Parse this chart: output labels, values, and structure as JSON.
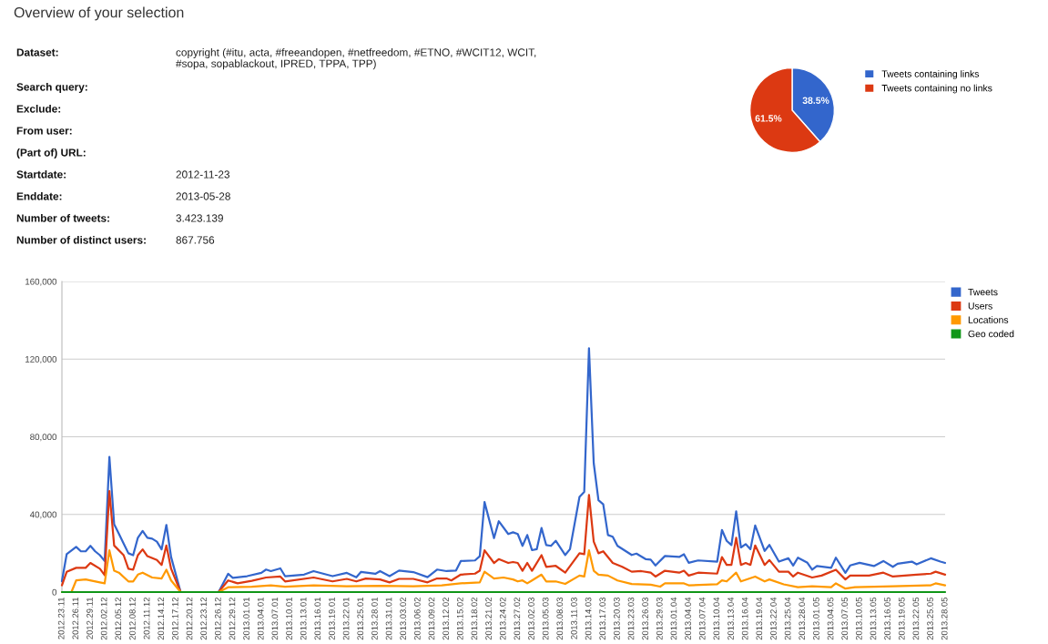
{
  "chart_data": [
    {
      "type": "other",
      "title": "Overview of your selection",
      "annotations": [
        "Dataset:",
        "Search query:",
        "Exclude:",
        "From user:",
        "(Part of) URL:",
        "Startdate:",
        "Enddate:",
        "Number of tweets:",
        "Number of distinct users:"
      ],
      "value_labels": [
        "copyright (#itu, acta, #freeandopen, #netfreedom, #ETNO, #WCIT12, WCIT,\n#sopa, sopablackout, IPRED, TPPA, TPP)",
        null,
        null,
        null,
        null,
        "2012-11-23",
        "2013-05-28",
        "3.423.139",
        "867.756"
      ]
    },
    {
      "type": "pie",
      "categories": [
        "Tweets containing links",
        "Tweets containing no links"
      ],
      "values": [
        38.5,
        61.5
      ],
      "colors": [
        "#3366cc",
        "#dc3912"
      ],
      "value_labels": [
        "38.5%",
        "61.5%"
      ],
      "legend": "right"
    },
    {
      "type": "line",
      "xlim": [
        "2012-11-23",
        "2013-05-28"
      ],
      "ylim": [
        0,
        160000
      ],
      "yticks": [
        0,
        {
          "value": 40000,
          "label": "40,000"
        },
        {
          "value": 80000,
          "label": "80,000"
        },
        {
          "value": 120000,
          "label": "120,000"
        },
        {
          "value": 160000,
          "label": "160,000"
        }
      ],
      "xticks": [
        {
          "value": "2012-11-23",
          "label": "2012.23.11"
        },
        {
          "value": "2012-11-26",
          "label": "2012.26.11"
        },
        {
          "value": "2012-11-29",
          "label": "2012.29.11"
        },
        {
          "value": "2012-12-02",
          "label": "2012.02.12"
        },
        {
          "value": "2012-12-05",
          "label": "2012.05.12"
        },
        {
          "value": "2012-12-08",
          "label": "2012.08.12"
        },
        {
          "value": "2012-12-11",
          "label": "2012.11.12"
        },
        {
          "value": "2012-12-14",
          "label": "2012.14.12"
        },
        {
          "value": "2012-12-17",
          "label": "2012.17.12"
        },
        {
          "value": "2012-12-20",
          "label": "2012.20.12"
        },
        {
          "value": "2012-12-23",
          "label": "2012.23.12"
        },
        {
          "value": "2012-12-26",
          "label": "2012.26.12"
        },
        {
          "value": "2012-12-29",
          "label": "2012.29.12"
        },
        {
          "value": "2013-01-01",
          "label": "2013.01.01"
        },
        {
          "value": "2013-01-04",
          "label": "2013.04.01"
        },
        {
          "value": "2013-01-07",
          "label": "2013.07.01"
        },
        {
          "value": "2013-01-10",
          "label": "2013.10.01"
        },
        {
          "value": "2013-01-13",
          "label": "2013.13.01"
        },
        {
          "value": "2013-01-16",
          "label": "2013.16.01"
        },
        {
          "value": "2013-01-19",
          "label": "2013.19.01"
        },
        {
          "value": "2013-01-22",
          "label": "2013.22.01"
        },
        {
          "value": "2013-01-25",
          "label": "2013.25.01"
        },
        {
          "value": "2013-01-28",
          "label": "2013.28.01"
        },
        {
          "value": "2013-01-31",
          "label": "2013.31.01"
        },
        {
          "value": "2013-02-03",
          "label": "2013.03.02"
        },
        {
          "value": "2013-02-06",
          "label": "2013.06.02"
        },
        {
          "value": "2013-02-09",
          "label": "2013.09.02"
        },
        {
          "value": "2013-02-12",
          "label": "2013.12.02"
        },
        {
          "value": "2013-02-15",
          "label": "2013.15.02"
        },
        {
          "value": "2013-02-18",
          "label": "2013.18.02"
        },
        {
          "value": "2013-02-21",
          "label": "2013.21.02"
        },
        {
          "value": "2013-02-24",
          "label": "2013.24.02"
        },
        {
          "value": "2013-02-27",
          "label": "2013.27.02"
        },
        {
          "value": "2013-03-02",
          "label": "2013.02.03"
        },
        {
          "value": "2013-03-05",
          "label": "2013.05.03"
        },
        {
          "value": "2013-03-08",
          "label": "2013.08.03"
        },
        {
          "value": "2013-03-11",
          "label": "2013.11.03"
        },
        {
          "value": "2013-03-14",
          "label": "2013.14.03"
        },
        {
          "value": "2013-03-17",
          "label": "2013.17.03"
        },
        {
          "value": "2013-03-20",
          "label": "2013.20.03"
        },
        {
          "value": "2013-03-23",
          "label": "2013.23.03"
        },
        {
          "value": "2013-03-26",
          "label": "2013.26.03"
        },
        {
          "value": "2013-03-29",
          "label": "2013.29.03"
        },
        {
          "value": "2013-04-01",
          "label": "2013.01.04"
        },
        {
          "value": "2013-04-04",
          "label": "2013.04.04"
        },
        {
          "value": "2013-04-07",
          "label": "2013.07.04"
        },
        {
          "value": "2013-04-10",
          "label": "2013.10.04"
        },
        {
          "value": "2013-04-13",
          "label": "2013.13.04"
        },
        {
          "value": "2013-04-16",
          "label": "2013.16.04"
        },
        {
          "value": "2013-04-19",
          "label": "2013.19.04"
        },
        {
          "value": "2013-04-22",
          "label": "2013.22.04"
        },
        {
          "value": "2013-04-25",
          "label": "2013.25.04"
        },
        {
          "value": "2013-04-28",
          "label": "2013.28.04"
        },
        {
          "value": "2013-05-01",
          "label": "2013.01.05"
        },
        {
          "value": "2013-05-04",
          "label": "2013.04.05"
        },
        {
          "value": "2013-05-07",
          "label": "2013.07.05"
        },
        {
          "value": "2013-05-10",
          "label": "2013.10.05"
        },
        {
          "value": "2013-05-13",
          "label": "2013.13.05"
        },
        {
          "value": "2013-05-16",
          "label": "2013.16.05"
        },
        {
          "value": "2013-05-19",
          "label": "2013.19.05"
        },
        {
          "value": "2013-05-22",
          "label": "2013.22.05"
        },
        {
          "value": "2013-05-25",
          "label": "2013.25.05"
        },
        {
          "value": "2013-05-28",
          "label": "2013.28.05"
        }
      ],
      "grid": "y",
      "legend": "top right",
      "series": [
        {
          "name": "Tweets",
          "color": "#3366cc",
          "x": [
            "2012-11-23",
            "2012-11-24",
            "2012-11-26",
            "2012-11-27",
            "2012-11-28",
            "2012-11-29",
            "2012-11-30",
            "2012-12-01",
            "2012-12-02",
            "2012-12-03",
            "2012-12-04",
            "2012-12-05",
            "2012-12-06",
            "2012-12-07",
            "2012-12-08",
            "2012-12-09",
            "2012-12-10",
            "2012-12-11",
            "2012-12-12",
            "2012-12-13",
            "2012-12-14",
            "2012-12-15",
            "2012-12-16",
            "2012-12-18",
            "2012-12-26",
            "2012-12-28",
            "2012-12-29",
            "2013-01-01",
            "2013-01-04",
            "2013-01-05",
            "2013-01-06",
            "2013-01-08",
            "2013-01-09",
            "2013-01-13",
            "2013-01-15",
            "2013-01-19",
            "2013-01-22",
            "2013-01-24",
            "2013-01-25",
            "2013-01-28",
            "2013-01-29",
            "2013-01-31",
            "2013-02-02",
            "2013-02-05",
            "2013-02-08",
            "2013-02-10",
            "2013-02-12",
            "2013-02-14",
            "2013-02-15",
            "2013-02-18",
            "2013-02-19",
            "2013-02-20",
            "2013-02-22",
            "2013-02-23",
            "2013-02-25",
            "2013-02-26",
            "2013-02-27",
            "2013-02-28",
            "2013-03-01",
            "2013-03-02",
            "2013-03-03",
            "2013-03-04",
            "2013-03-05",
            "2013-03-06",
            "2013-03-07",
            "2013-03-09",
            "2013-03-10",
            "2013-03-12",
            "2013-03-13",
            "2013-03-14",
            "2013-03-15",
            "2013-03-16",
            "2013-03-17",
            "2013-03-18",
            "2013-03-19",
            "2013-03-20",
            "2013-03-23",
            "2013-03-24",
            "2013-03-26",
            "2013-03-27",
            "2013-03-28",
            "2013-03-30",
            "2013-04-02",
            "2013-04-03",
            "2013-04-04",
            "2013-04-06",
            "2013-04-10",
            "2013-04-11",
            "2013-04-12",
            "2013-04-13",
            "2013-04-14",
            "2013-04-15",
            "2013-04-16",
            "2013-04-17",
            "2013-04-18",
            "2013-04-20",
            "2013-04-21",
            "2013-04-23",
            "2013-04-25",
            "2013-04-26",
            "2013-04-27",
            "2013-04-29",
            "2013-04-30",
            "2013-05-01",
            "2013-05-04",
            "2013-05-05",
            "2013-05-07",
            "2013-05-08",
            "2013-05-10",
            "2013-05-13",
            "2013-05-15",
            "2013-05-17",
            "2013-05-18",
            "2013-05-21",
            "2013-05-22",
            "2013-05-25",
            "2013-05-27",
            "2013-05-28"
          ],
          "values": [
            5600,
            19500,
            23300,
            21000,
            21000,
            23800,
            21000,
            19000,
            16000,
            69600,
            35000,
            30000,
            25000,
            20000,
            19000,
            28000,
            31500,
            28000,
            27500,
            26000,
            22000,
            34600,
            18000,
            0,
            0,
            9400,
            7300,
            8200,
            9900,
            11600,
            10800,
            12200,
            8200,
            9000,
            10800,
            8200,
            9900,
            7600,
            10400,
            9400,
            10800,
            8200,
            11100,
            10300,
            7700,
            11600,
            10800,
            11100,
            16000,
            16300,
            18500,
            46400,
            27800,
            36500,
            29900,
            30800,
            29900,
            23800,
            29400,
            21600,
            22100,
            33000,
            24200,
            23800,
            26400,
            19100,
            22100,
            49000,
            51600,
            125600,
            66400,
            47300,
            45200,
            29400,
            28500,
            23800,
            19100,
            19800,
            16900,
            16700,
            13700,
            18600,
            18100,
            19500,
            15100,
            16300,
            15700,
            32000,
            26400,
            24200,
            41600,
            23000,
            24700,
            22100,
            34300,
            21200,
            24300,
            15700,
            17400,
            13700,
            17700,
            15100,
            11600,
            13400,
            12500,
            17700,
            9900,
            13700,
            15100,
            13400,
            16000,
            13000,
            14600,
            15700,
            14300,
            17400,
            15700,
            15000
          ]
        },
        {
          "name": "Users",
          "color": "#dc3912",
          "x": [
            "2012-11-23",
            "2012-11-24",
            "2012-11-26",
            "2012-11-28",
            "2012-11-29",
            "2012-12-01",
            "2012-12-02",
            "2012-12-03",
            "2012-12-04",
            "2012-12-06",
            "2012-12-07",
            "2012-12-08",
            "2012-12-09",
            "2012-12-10",
            "2012-12-11",
            "2012-12-13",
            "2012-12-14",
            "2012-12-15",
            "2012-12-16",
            "2012-12-18",
            "2012-12-26",
            "2012-12-28",
            "2012-12-30",
            "2013-01-02",
            "2013-01-05",
            "2013-01-08",
            "2013-01-09",
            "2013-01-15",
            "2013-01-19",
            "2013-01-22",
            "2013-01-24",
            "2013-01-26",
            "2013-01-29",
            "2013-01-31",
            "2013-02-02",
            "2013-02-05",
            "2013-02-08",
            "2013-02-10",
            "2013-02-12",
            "2013-02-13",
            "2013-02-15",
            "2013-02-18",
            "2013-02-19",
            "2013-02-20",
            "2013-02-22",
            "2013-02-23",
            "2013-02-25",
            "2013-02-26",
            "2013-02-27",
            "2013-02-28",
            "2013-03-01",
            "2013-03-02",
            "2013-03-04",
            "2013-03-05",
            "2013-03-07",
            "2013-03-09",
            "2013-03-12",
            "2013-03-13",
            "2013-03-14",
            "2013-03-15",
            "2013-03-16",
            "2013-03-17",
            "2013-03-19",
            "2013-03-21",
            "2013-03-23",
            "2013-03-25",
            "2013-03-27",
            "2013-03-28",
            "2013-03-30",
            "2013-04-02",
            "2013-04-03",
            "2013-04-04",
            "2013-04-06",
            "2013-04-10",
            "2013-04-11",
            "2013-04-12",
            "2013-04-13",
            "2013-04-14",
            "2013-04-15",
            "2013-04-16",
            "2013-04-17",
            "2013-04-18",
            "2013-04-20",
            "2013-04-21",
            "2013-04-23",
            "2013-04-25",
            "2013-04-26",
            "2013-04-27",
            "2013-04-30",
            "2013-05-02",
            "2013-05-05",
            "2013-05-07",
            "2013-05-08",
            "2013-05-12",
            "2013-05-15",
            "2013-05-17",
            "2013-05-22",
            "2013-05-25",
            "2013-05-26",
            "2013-05-28"
          ],
          "values": [
            3500,
            10400,
            12500,
            12500,
            15000,
            12000,
            8700,
            52000,
            24000,
            19000,
            12000,
            11500,
            19000,
            22000,
            18500,
            16500,
            14000,
            24000,
            12000,
            0,
            0,
            6000,
            4500,
            5800,
            7500,
            8000,
            5500,
            7500,
            5500,
            6800,
            5500,
            7000,
            6500,
            5000,
            6800,
            6800,
            5000,
            7000,
            7000,
            6000,
            9000,
            9500,
            11000,
            21500,
            15000,
            17000,
            15000,
            15500,
            15000,
            11000,
            15000,
            11000,
            19000,
            13000,
            13500,
            10000,
            20000,
            19500,
            50000,
            26000,
            20000,
            21000,
            15000,
            13000,
            10500,
            10800,
            10000,
            8000,
            11000,
            10000,
            11000,
            8500,
            10000,
            9500,
            18000,
            14000,
            14000,
            28000,
            14000,
            15000,
            14000,
            24000,
            14000,
            16500,
            10500,
            10500,
            8000,
            10000,
            7500,
            8500,
            11500,
            6500,
            8500,
            8500,
            10000,
            8000,
            9000,
            9500,
            10500,
            9000
          ]
        },
        {
          "name": "Locations",
          "color": "#ff9900",
          "x": [
            "2012-11-23",
            "2012-11-25",
            "2012-11-26",
            "2012-11-28",
            "2012-12-01",
            "2012-12-02",
            "2012-12-03",
            "2012-12-04",
            "2012-12-05",
            "2012-12-07",
            "2012-12-08",
            "2012-12-09",
            "2012-12-10",
            "2012-12-12",
            "2012-12-14",
            "2012-12-15",
            "2012-12-16",
            "2012-12-18",
            "2012-12-26",
            "2012-12-28",
            "2013-01-02",
            "2013-01-06",
            "2013-01-09",
            "2013-01-15",
            "2013-01-22",
            "2013-01-29",
            "2013-02-05",
            "2013-02-11",
            "2013-02-15",
            "2013-02-19",
            "2013-02-20",
            "2013-02-22",
            "2013-02-24",
            "2013-02-26",
            "2013-02-27",
            "2013-02-28",
            "2013-03-01",
            "2013-03-02",
            "2013-03-04",
            "2013-03-05",
            "2013-03-07",
            "2013-03-09",
            "2013-03-12",
            "2013-03-13",
            "2013-03-14",
            "2013-03-15",
            "2013-03-16",
            "2013-03-18",
            "2013-03-20",
            "2013-03-23",
            "2013-03-27",
            "2013-03-29",
            "2013-03-30",
            "2013-04-03",
            "2013-04-04",
            "2013-04-10",
            "2013-04-11",
            "2013-04-12",
            "2013-04-14",
            "2013-04-15",
            "2013-04-18",
            "2013-04-20",
            "2013-04-21",
            "2013-04-24",
            "2013-04-27",
            "2013-04-30",
            "2013-05-04",
            "2013-05-05",
            "2013-05-07",
            "2013-05-09",
            "2013-05-17",
            "2013-05-25",
            "2013-05-26",
            "2013-05-28"
          ],
          "values": [
            0,
            0,
            6000,
            6500,
            5000,
            4500,
            21500,
            11000,
            10000,
            5500,
            5500,
            9000,
            10000,
            7500,
            7000,
            11500,
            6000,
            0,
            0,
            2500,
            2800,
            3500,
            2800,
            3500,
            3000,
            3200,
            3000,
            3500,
            4500,
            5000,
            10500,
            7000,
            7500,
            6500,
            5500,
            6000,
            4500,
            6000,
            9000,
            5500,
            5500,
            4200,
            8500,
            8000,
            21500,
            11000,
            9000,
            8500,
            6000,
            4200,
            3800,
            2800,
            4500,
            4500,
            3500,
            4000,
            6000,
            5500,
            10000,
            5500,
            8000,
            5500,
            6500,
            4000,
            2500,
            3000,
            2500,
            4500,
            1800,
            2500,
            3000,
            3500,
            4500,
            3500
          ]
        },
        {
          "name": "Geo coded",
          "color": "#109618",
          "x": [
            "2012-11-23",
            "2013-05-28"
          ],
          "values": [
            0,
            0
          ]
        }
      ]
    }
  ]
}
